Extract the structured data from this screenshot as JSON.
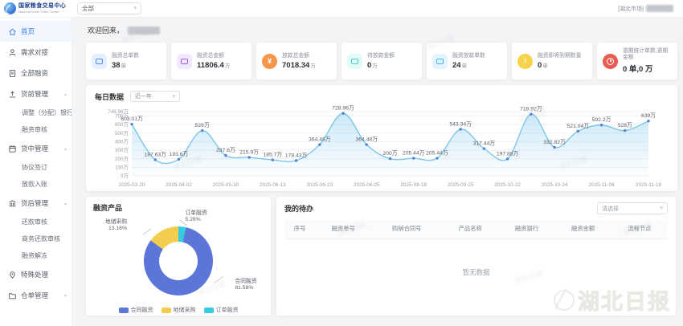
{
  "header": {
    "logo_title": "国家粮食交易中心",
    "logo_subtitle": "National Grain Trade Center",
    "market_select_value": "全部",
    "market_tag": "[湖北市场]"
  },
  "welcome": {
    "text": "欢迎回来，"
  },
  "sidebar": {
    "items": [
      {
        "label": "首页",
        "icon": "home-icon",
        "active": true
      },
      {
        "label": "需求对接",
        "icon": "user-icon"
      },
      {
        "label": "全部融资",
        "icon": "document-icon"
      },
      {
        "label": "贷前管理",
        "icon": "upload-icon",
        "expanded": true,
        "children": [
          "调整（分配）银行",
          "融资审核"
        ]
      },
      {
        "label": "贷中管理",
        "icon": "calendar-icon",
        "expanded": true,
        "children": [
          "协议签订",
          "放款入账"
        ]
      },
      {
        "label": "贷后管理",
        "icon": "bank-icon",
        "expanded": true,
        "children": [
          "还款审核",
          "商务还款审核",
          "融资解冻"
        ]
      },
      {
        "label": "特殊处理",
        "icon": "pin-icon"
      },
      {
        "label": "仓单管理",
        "icon": "folder-icon",
        "expanded": false,
        "children": []
      }
    ]
  },
  "stat_cards": [
    {
      "title": "融资总单数",
      "value": "38",
      "unit": "单",
      "icon": "folder-blue-icon",
      "shape": "square",
      "color": "#4e8cf5",
      "bg": "#e5effe"
    },
    {
      "title": "融资总金额",
      "value": "11806.4",
      "unit": "万",
      "icon": "money-purple-icon",
      "shape": "square",
      "color": "#a15df2",
      "bg": "#f2e8fe"
    },
    {
      "title": "放款总金额",
      "value": "7018.34",
      "unit": "万",
      "icon": "coin-orange-icon",
      "shape": "circle",
      "color": "#f5964a",
      "bg": "#fdeee2",
      "glyph": "¥"
    },
    {
      "title": "待放款金额",
      "value": "0",
      "unit": "万",
      "icon": "wallet-teal-icon",
      "shape": "square",
      "color": "#45d3c3",
      "bg": "#e3faf6"
    },
    {
      "title": "融资放款单数",
      "value": "24",
      "unit": "单",
      "icon": "chart-lightblue-icon",
      "shape": "square",
      "color": "#3fb6f0",
      "bg": "#e3f4fd"
    },
    {
      "title": "融资即将到期数量",
      "value": "0",
      "unit": "单",
      "icon": "alert-yellow-icon",
      "shape": "circle",
      "color": "#f6d34d",
      "bg": "#fdf7e1",
      "glyph": "!"
    },
    {
      "title": "逾期统计单数,逾期金额",
      "value": "0 单,0 万",
      "unit": "",
      "icon": "clock-red-icon",
      "shape": "circle",
      "color": "#e85c51",
      "bg": "#fde9e7",
      "glyph": "clock"
    }
  ],
  "todo": {
    "title": "我的待办",
    "filter_placeholder": "请选择",
    "headers": [
      "序号",
      "融资单号",
      "购销合同号",
      "产品名称",
      "融资银行",
      "融资金额",
      "流程节点"
    ],
    "empty_text": "暂无数据"
  },
  "watermark": {
    "text": "湖北日报"
  },
  "chart_data": [
    {
      "type": "line",
      "title": "每日数据",
      "range_label": "近一年",
      "x_dates": [
        "2025-03-20",
        "2025-04-02",
        "2025-05-30",
        "2025-06-13",
        "2025-06-23",
        "2025-06-25",
        "2025-08-18",
        "2025-09-25",
        "2025-10-22",
        "2025-10-24",
        "2025-11-06",
        "2025-11-18"
      ],
      "values": [
        603.01,
        187.63,
        193.6,
        528,
        237.6,
        215.9,
        185.7,
        178.43,
        364.48,
        728.96,
        364.48,
        200,
        205.44,
        205.44,
        543.34,
        317.44,
        197.88,
        718.92,
        332.82,
        521.04,
        592.2,
        528,
        639
      ],
      "point_labels": [
        "603.01万",
        "187.63万",
        "193.6万",
        "528万",
        "237.6万",
        "215.9万",
        "185.7万",
        "178.43万",
        "364.48万",
        "728.96万",
        "364.48万",
        "200万",
        "205.44万",
        "205.44万",
        "543.34万",
        "317.44万",
        "197.88万",
        "718.92万",
        "332.82万",
        "521.04万",
        "592.2万",
        "528万",
        "639万"
      ],
      "yticks": [
        {
          "v": 748.96,
          "label": "748.96万"
        },
        {
          "v": 700,
          "label": "700万"
        },
        {
          "v": 600,
          "label": "600万"
        },
        {
          "v": 500,
          "label": "500万"
        },
        {
          "v": 400,
          "label": "400万"
        },
        {
          "v": 300,
          "label": "300万"
        },
        {
          "v": 200,
          "label": "200万"
        },
        {
          "v": 100,
          "label": "100万"
        },
        {
          "v": 0,
          "label": "0万"
        }
      ],
      "ylim": [
        0,
        748.96
      ],
      "grid": true,
      "line_color": "#7cc7e8",
      "point_color": "#5680d0",
      "area_top_color": "rgba(140,205,238,0.45)",
      "area_bottom_color": "rgba(140,205,238,0.02)"
    },
    {
      "type": "pie",
      "title": "融资产品",
      "labels": [
        "合同融资",
        "地储采购",
        "订单融资"
      ],
      "values": [
        81.58,
        13.16,
        5.26
      ],
      "pct_labels": [
        "81.58%",
        "13.16%",
        "5.26%"
      ],
      "colors": [
        "#5b76d8",
        "#f3ce4e",
        "#35cbe0"
      ],
      "draw_order": [
        2,
        0,
        1
      ],
      "start_angle_deg": -6,
      "legend_position": "bottom"
    }
  ]
}
